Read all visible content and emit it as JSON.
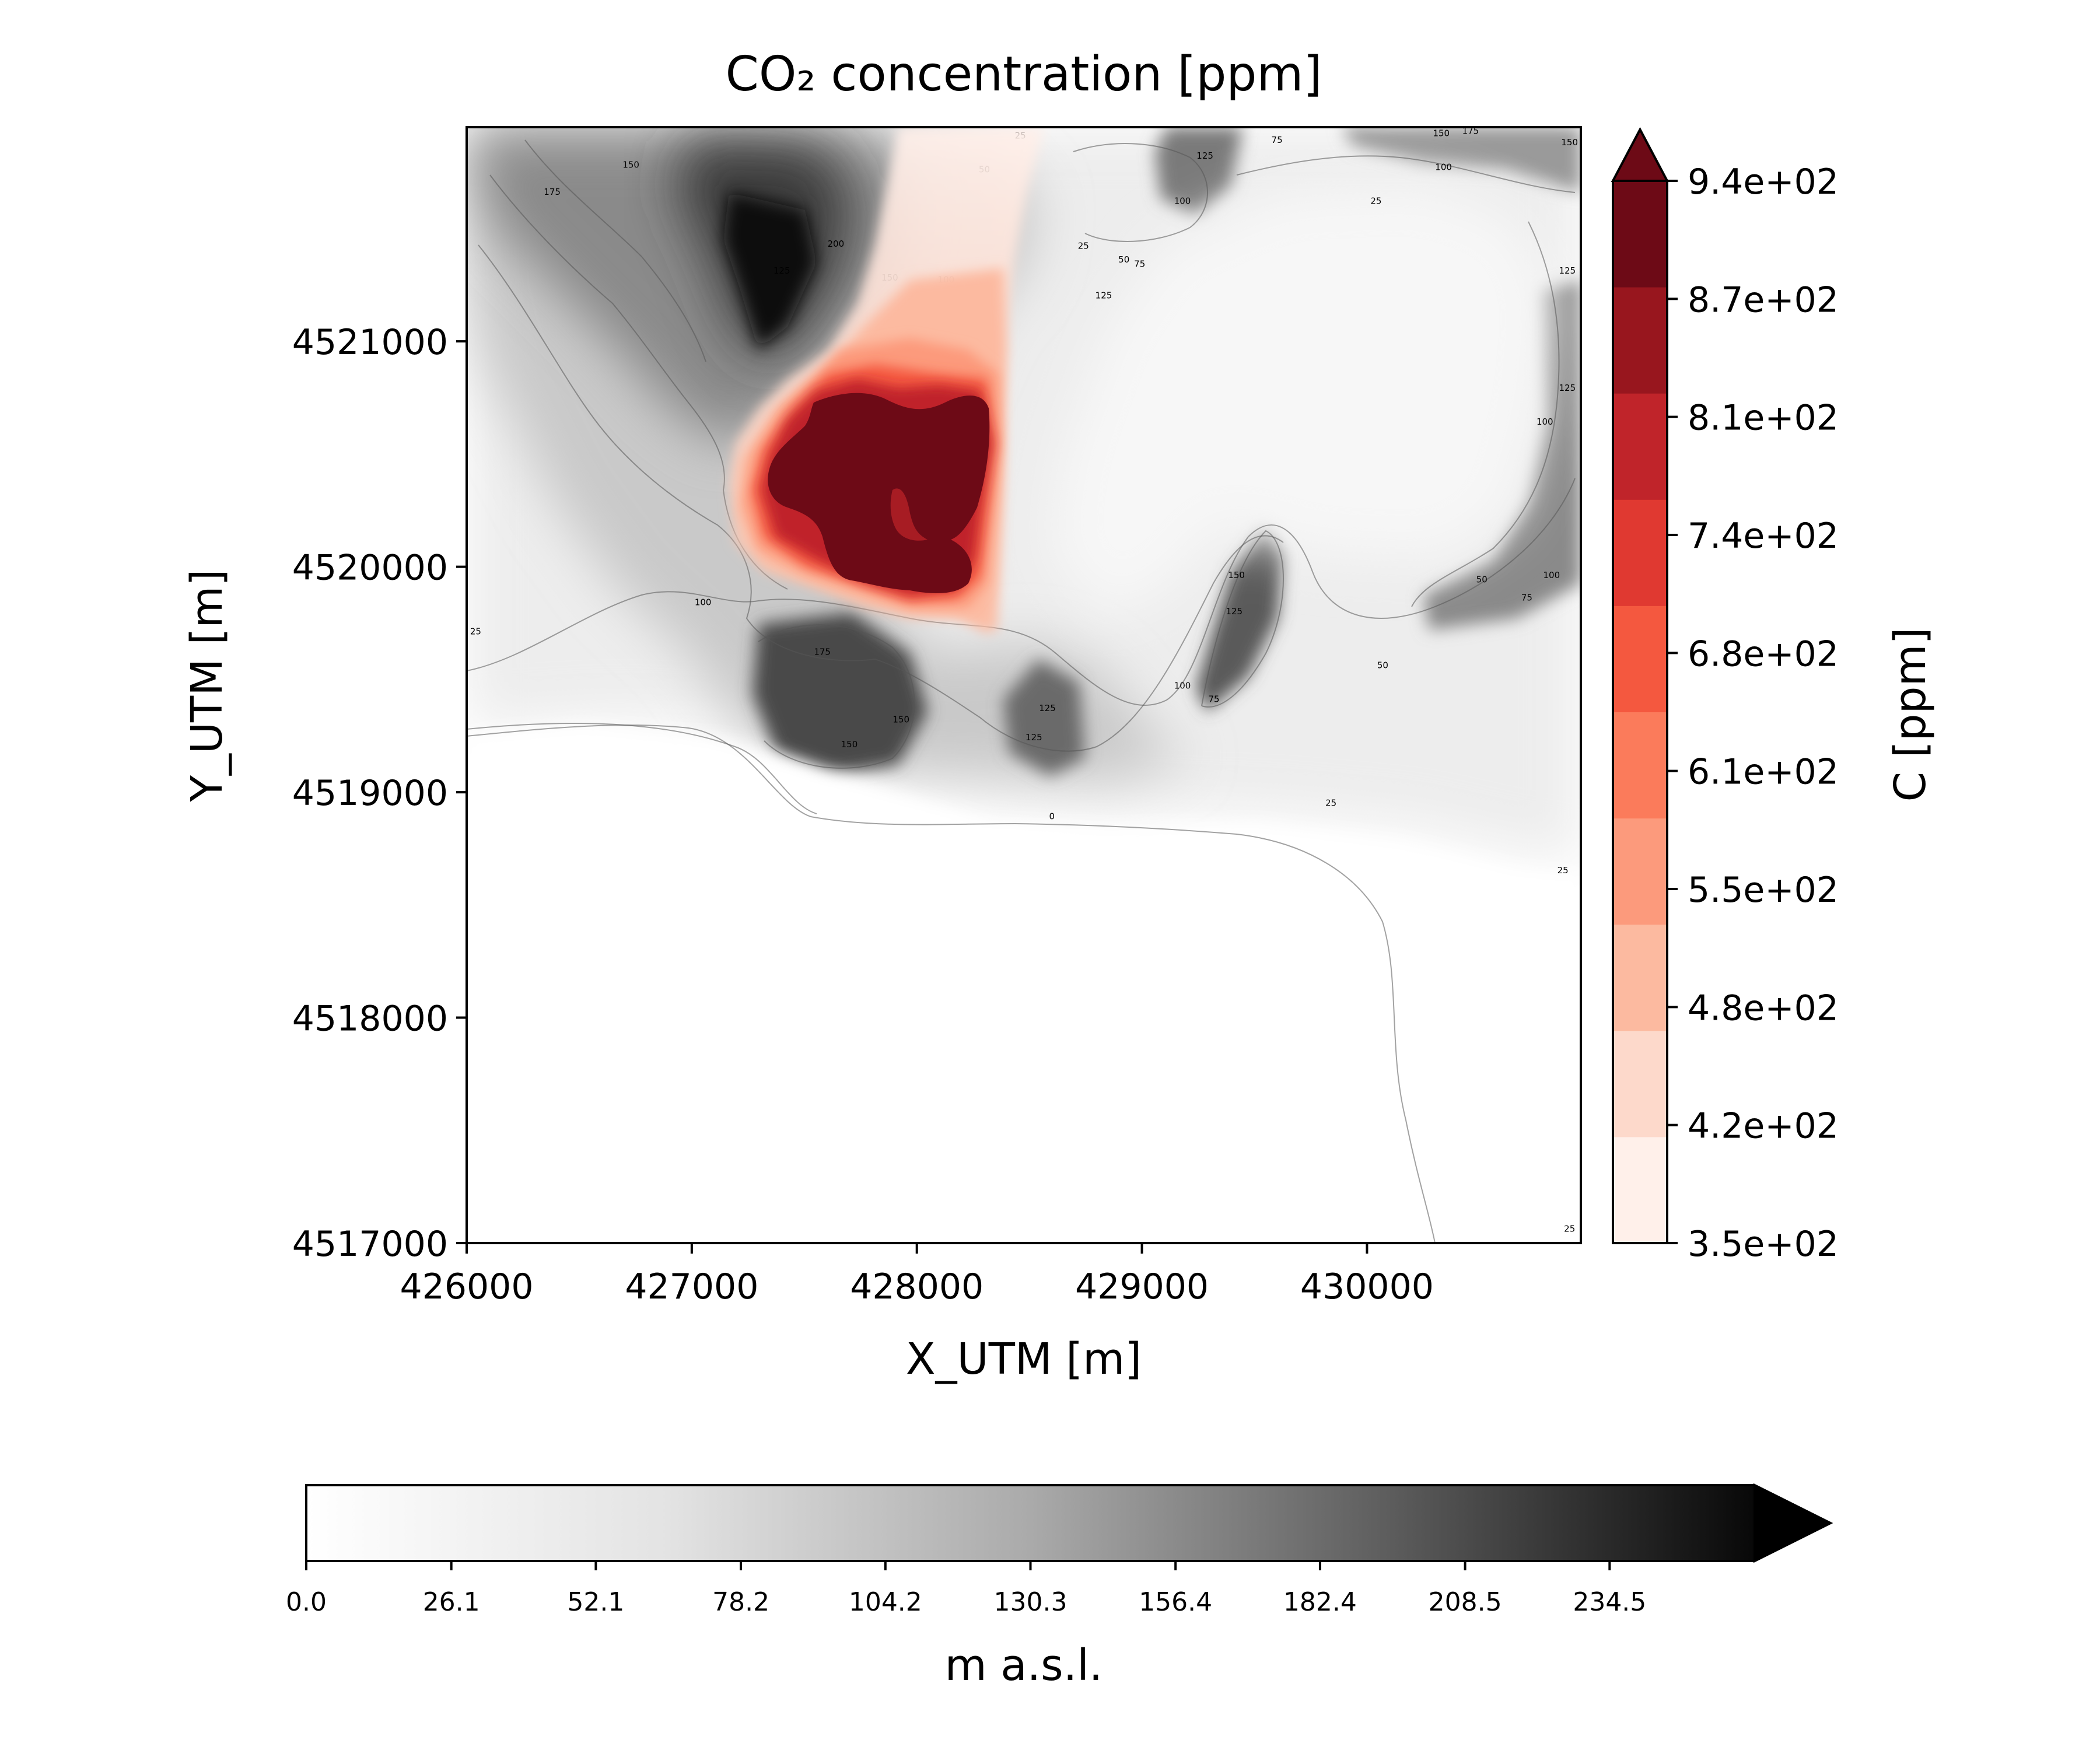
{
  "chart_data": {
    "type": "heatmap",
    "title": "CO₂ concentration [ppm]",
    "xlabel": "X_UTM [m]",
    "ylabel": "Y_UTM [m]",
    "xlim": [
      426000,
      430950
    ],
    "ylim": [
      4517000,
      4521950
    ],
    "x_ticks": [
      "426000",
      "427000",
      "428000",
      "429000",
      "430000"
    ],
    "x_tick_values": [
      426000,
      427000,
      428000,
      429000,
      430000
    ],
    "y_ticks": [
      "4517000",
      "4518000",
      "4519000",
      "4520000",
      "4521000"
    ],
    "y_tick_values": [
      4517000,
      4518000,
      4519000,
      4520000,
      4521000
    ],
    "grid": false,
    "concentration_colorbar": {
      "label": "C [ppm]",
      "placement": "right",
      "extend": "max",
      "tick_labels": [
        "3.5e+02",
        "4.2e+02",
        "4.8e+02",
        "5.5e+02",
        "6.1e+02",
        "6.8e+02",
        "7.4e+02",
        "8.1e+02",
        "8.7e+02",
        "9.4e+02"
      ],
      "level_colors": [
        "#fff0ea",
        "#fdd9cb",
        "#fcbaa0",
        "#fc9a7c",
        "#fb7b5b",
        "#f4583f",
        "#e03931",
        "#c0242a",
        "#98161e",
        "#6d0a16"
      ]
    },
    "terrain_colorbar": {
      "label": "m a.s.l.",
      "placement": "bottom",
      "extend": "max",
      "tick_labels": [
        "0.0",
        "26.1",
        "52.1",
        "78.2",
        "104.2",
        "130.3",
        "156.4",
        "182.4",
        "208.5",
        "234.5"
      ],
      "range": [
        0,
        260.6
      ],
      "colormap": "greys"
    },
    "contour_labels": [
      {
        "text": "175",
        "x": 426380,
        "y": 4521650
      },
      {
        "text": "150",
        "x": 426730,
        "y": 4521770
      },
      {
        "text": "125",
        "x": 427400,
        "y": 4521300
      },
      {
        "text": "200",
        "x": 427640,
        "y": 4521420
      },
      {
        "text": "150",
        "x": 427880,
        "y": 4521270
      },
      {
        "text": "100",
        "x": 428130,
        "y": 4521260
      },
      {
        "text": "175",
        "x": 428040,
        "y": 4521110
      },
      {
        "text": "50",
        "x": 428300,
        "y": 4521750
      },
      {
        "text": "25",
        "x": 428460,
        "y": 4521900
      },
      {
        "text": "25",
        "x": 428740,
        "y": 4521410
      },
      {
        "text": "50",
        "x": 428920,
        "y": 4521350
      },
      {
        "text": "75",
        "x": 428990,
        "y": 4521330
      },
      {
        "text": "125",
        "x": 428830,
        "y": 4521190
      },
      {
        "text": "100",
        "x": 429180,
        "y": 4521610
      },
      {
        "text": "125",
        "x": 429280,
        "y": 4521810
      },
      {
        "text": "75",
        "x": 429600,
        "y": 4521880
      },
      {
        "text": "25",
        "x": 430040,
        "y": 4521610
      },
      {
        "text": "150",
        "x": 430330,
        "y": 4521910
      },
      {
        "text": "175",
        "x": 430460,
        "y": 4521920
      },
      {
        "text": "100",
        "x": 430340,
        "y": 4521760
      },
      {
        "text": "125",
        "x": 430890,
        "y": 4521300
      },
      {
        "text": "150",
        "x": 430900,
        "y": 4521870
      },
      {
        "text": "125",
        "x": 430890,
        "y": 4520780
      },
      {
        "text": "100",
        "x": 430790,
        "y": 4520630
      },
      {
        "text": "100",
        "x": 427050,
        "y": 4519830
      },
      {
        "text": "175",
        "x": 427580,
        "y": 4519610
      },
      {
        "text": "150",
        "x": 427700,
        "y": 4519200
      },
      {
        "text": "150",
        "x": 427930,
        "y": 4519310
      },
      {
        "text": "125",
        "x": 428580,
        "y": 4519360
      },
      {
        "text": "125",
        "x": 428520,
        "y": 4519230
      },
      {
        "text": "100",
        "x": 429180,
        "y": 4519460
      },
      {
        "text": "75",
        "x": 429320,
        "y": 4519400
      },
      {
        "text": "150",
        "x": 429420,
        "y": 4519950
      },
      {
        "text": "125",
        "x": 429410,
        "y": 4519790
      },
      {
        "text": "50",
        "x": 430070,
        "y": 4519550
      },
      {
        "text": "50",
        "x": 430510,
        "y": 4519930
      },
      {
        "text": "75",
        "x": 430710,
        "y": 4519850
      },
      {
        "text": "100",
        "x": 430820,
        "y": 4519950
      },
      {
        "text": "25",
        "x": 426040,
        "y": 4519700
      },
      {
        "text": "0",
        "x": 428600,
        "y": 4518880
      },
      {
        "text": "25",
        "x": 429840,
        "y": 4518940
      },
      {
        "text": "25",
        "x": 430870,
        "y": 4518640
      },
      {
        "text": "25",
        "x": 430900,
        "y": 4517050
      }
    ]
  }
}
